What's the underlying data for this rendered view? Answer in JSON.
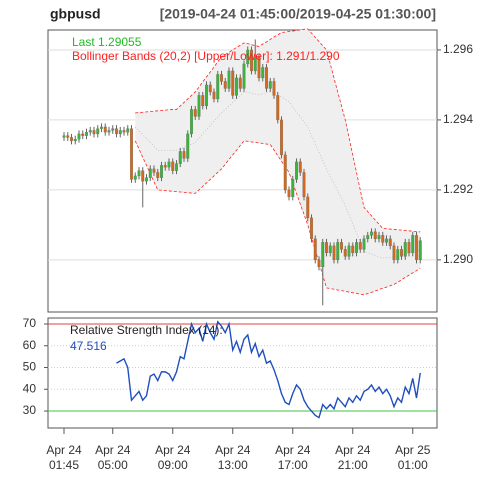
{
  "chart_data": [
    {
      "type": "candlestick",
      "title": "gbpusd",
      "subtitle": "[2019-04-24 01:45:00/2019-04-25 01:30:00]",
      "last_label": "Last 1.29055",
      "last_color": "#22bb22",
      "bands_label": "Bollinger Bands (20,2) [Upper/Lower]: 1.291/1.290",
      "bands_color": "#ff2020",
      "up_color": "#3cb43c",
      "down_color": "#d2691e",
      "ylim": [
        1.28851,
        1.29657
      ],
      "yticks": [
        {
          "value": 1.29,
          "label": "1.290"
        },
        1.292,
        1.294,
        1.296
      ],
      "grid": true,
      "open": [
        1.2935,
        1.29355,
        1.2935,
        1.2934,
        1.29345,
        1.2936,
        1.29355,
        1.29365,
        1.2937,
        1.2936,
        1.29375,
        1.2938,
        1.29365,
        1.2937,
        1.29375,
        1.2936,
        1.2937,
        1.29365,
        1.29375,
        1.2923,
        1.2924,
        1.29255,
        1.29225,
        1.29235,
        1.2926,
        1.2925,
        1.29235,
        1.2927,
        1.29265,
        1.2928,
        1.29255,
        1.29275,
        1.2931,
        1.2929,
        1.2936,
        1.2943,
        1.2941,
        1.2947,
        1.2944,
        1.295,
        1.2948,
        1.2946,
        1.2953,
        1.2951,
        1.2949,
        1.2954,
        1.2947,
        1.2952,
        1.2949,
        1.2956,
        1.296,
        1.2954,
        1.2958,
        1.2952,
        1.2955,
        1.2949,
        1.2951,
        1.2947,
        1.294,
        1.293,
        1.292,
        1.2918,
        1.2923,
        1.2928,
        1.2925,
        1.2918,
        1.2912,
        1.2906,
        1.29,
        1.2898,
        1.2905,
        1.2902,
        1.2904,
        1.29,
        1.2905,
        1.2903,
        1.2901,
        1.2904,
        1.2902,
        1.2905,
        1.2903,
        1.2906,
        1.2907,
        1.2908,
        1.2906,
        1.2907,
        1.2905,
        1.2906,
        1.2904,
        1.29,
        1.2903,
        1.2901,
        1.2905,
        1.2902,
        1.2907,
        1.29
      ],
      "high": [
        1.29365,
        1.29365,
        1.2936,
        1.29355,
        1.2937,
        1.2937,
        1.29375,
        1.2938,
        1.2938,
        1.29385,
        1.2939,
        1.2939,
        1.2938,
        1.29385,
        1.29385,
        1.2938,
        1.2938,
        1.29385,
        1.29385,
        1.2925,
        1.29265,
        1.29265,
        1.29245,
        1.2927,
        1.2927,
        1.2926,
        1.2928,
        1.2928,
        1.2929,
        1.2929,
        1.29285,
        1.2932,
        1.2932,
        1.2937,
        1.2944,
        1.2944,
        1.2948,
        1.2948,
        1.2951,
        1.2951,
        1.2949,
        1.2954,
        1.2954,
        1.2952,
        1.2955,
        1.2955,
        1.2953,
        1.2953,
        1.2957,
        1.2961,
        1.2961,
        1.2963,
        1.2959,
        1.2956,
        1.2956,
        1.2952,
        1.2952,
        1.2948,
        1.2941,
        1.2931,
        1.2921,
        1.2924,
        1.2929,
        1.2929,
        1.2926,
        1.2919,
        1.2913,
        1.2907,
        1.2901,
        1.2906,
        1.2906,
        1.2905,
        1.2905,
        1.2906,
        1.2906,
        1.2904,
        1.2905,
        1.2905,
        1.2906,
        1.2906,
        1.2907,
        1.2908,
        1.2909,
        1.2909,
        1.2908,
        1.2908,
        1.2907,
        1.2907,
        1.2905,
        1.2904,
        1.2904,
        1.2906,
        1.2906,
        1.2908,
        1.2908,
        1.29065
      ],
      "low": [
        1.2934,
        1.2934,
        1.2933,
        1.2933,
        1.29335,
        1.29345,
        1.29345,
        1.29355,
        1.2935,
        1.2935,
        1.29365,
        1.29355,
        1.29355,
        1.2936,
        1.2935,
        1.2935,
        1.29355,
        1.29355,
        1.2922,
        1.2922,
        1.2923,
        1.2915,
        1.29215,
        1.29225,
        1.2924,
        1.29225,
        1.29225,
        1.29255,
        1.29255,
        1.29245,
        1.29245,
        1.29265,
        1.2928,
        1.2928,
        1.2935,
        1.294,
        1.294,
        1.2943,
        1.2943,
        1.2947,
        1.2945,
        1.2945,
        1.295,
        1.2948,
        1.2948,
        1.2946,
        1.2946,
        1.2948,
        1.2948,
        1.2955,
        1.2953,
        1.2953,
        1.2951,
        1.2951,
        1.2948,
        1.2948,
        1.2946,
        1.2939,
        1.2929,
        1.2919,
        1.2917,
        1.2917,
        1.2922,
        1.2924,
        1.2917,
        1.2911,
        1.2905,
        1.2899,
        1.2897,
        1.2887,
        1.2901,
        1.2901,
        1.2899,
        1.2899,
        1.2902,
        1.29,
        1.29,
        1.2901,
        1.2901,
        1.2902,
        1.2902,
        1.2905,
        1.2906,
        1.2905,
        1.2905,
        1.2904,
        1.2904,
        1.2903,
        1.2899,
        1.2899,
        1.29,
        1.29,
        1.2901,
        1.2901,
        1.2899,
        1.2899
      ],
      "close": [
        1.29355,
        1.2935,
        1.2934,
        1.29345,
        1.2936,
        1.29355,
        1.29365,
        1.2937,
        1.2936,
        1.29375,
        1.2938,
        1.29365,
        1.2937,
        1.29375,
        1.2936,
        1.2937,
        1.29365,
        1.29375,
        1.2923,
        1.2924,
        1.29255,
        1.29225,
        1.29235,
        1.2926,
        1.2925,
        1.29235,
        1.2927,
        1.29265,
        1.2928,
        1.29255,
        1.29275,
        1.2931,
        1.2929,
        1.2936,
        1.2943,
        1.2941,
        1.2947,
        1.2944,
        1.295,
        1.2948,
        1.2946,
        1.2953,
        1.2951,
        1.2949,
        1.2954,
        1.2947,
        1.2952,
        1.2949,
        1.2956,
        1.296,
        1.2954,
        1.2958,
        1.2952,
        1.2955,
        1.2949,
        1.2951,
        1.2947,
        1.294,
        1.293,
        1.292,
        1.2918,
        1.2923,
        1.2928,
        1.2925,
        1.2918,
        1.2912,
        1.2906,
        1.29,
        1.2898,
        1.2905,
        1.2902,
        1.2904,
        1.29,
        1.2905,
        1.2903,
        1.2901,
        1.2904,
        1.2902,
        1.2905,
        1.2903,
        1.2906,
        1.2907,
        1.2908,
        1.2906,
        1.2907,
        1.2905,
        1.2906,
        1.2904,
        1.29,
        1.2903,
        1.2901,
        1.2905,
        1.2902,
        1.2907,
        1.29,
        1.29055
      ],
      "bands": {
        "upper": [
          null,
          null,
          null,
          null,
          null,
          null,
          null,
          null,
          null,
          null,
          null,
          null,
          null,
          null,
          null,
          null,
          null,
          null,
          null,
          1.2942,
          1.29421,
          1.29422,
          1.29423,
          1.29424,
          1.29425,
          1.29426,
          1.29427,
          1.29428,
          1.29429,
          1.2943,
          1.2943,
          1.2944,
          1.2945,
          1.2946,
          1.2947,
          1.2948,
          1.29494,
          1.29509,
          1.29523,
          1.29537,
          1.29551,
          1.29566,
          1.2958,
          1.29587,
          1.29593,
          1.296,
          1.29607,
          1.29613,
          1.2962,
          1.29618,
          1.29615,
          1.29612,
          1.2961,
          1.29617,
          1.29623,
          1.2963,
          1.29637,
          1.29643,
          1.2965,
          1.29651,
          1.29653,
          1.29654,
          1.29656,
          1.29657,
          1.29659,
          1.2966,
          1.29648,
          1.29636,
          1.29624,
          1.29612,
          1.296,
          1.2956,
          1.2952,
          1.2948,
          1.2944,
          1.294,
          1.2935,
          1.293,
          1.2925,
          1.292,
          1.2915,
          1.29138,
          1.29126,
          1.29114,
          1.29102,
          1.2909,
          1.29089,
          1.29088,
          1.29087,
          1.29086,
          1.29085,
          1.29084,
          1.29083,
          1.29082,
          1.29081,
          1.2908
        ],
        "lower": [
          null,
          null,
          null,
          null,
          null,
          null,
          null,
          null,
          null,
          null,
          null,
          null,
          null,
          null,
          null,
          null,
          null,
          null,
          null,
          1.2934,
          1.29317,
          1.29293,
          1.2927,
          1.29247,
          1.29223,
          1.292,
          1.29199,
          1.29198,
          1.29197,
          1.29196,
          1.29195,
          1.29194,
          1.29193,
          1.29192,
          1.29191,
          1.2919,
          1.292,
          1.2921,
          1.2922,
          1.2923,
          1.2924,
          1.2925,
          1.2926,
          1.29273,
          1.29287,
          1.293,
          1.29313,
          1.29327,
          1.2934,
          1.29339,
          1.29337,
          1.29336,
          1.29334,
          1.29333,
          1.29331,
          1.2933,
          1.29314,
          1.29298,
          1.29282,
          1.29266,
          1.2925,
          1.2922,
          1.2919,
          1.2916,
          1.2913,
          1.291,
          1.29064,
          1.29028,
          1.28992,
          1.28956,
          1.2892,
          1.28918,
          1.28916,
          1.28914,
          1.28912,
          1.2891,
          1.28908,
          1.28906,
          1.28904,
          1.28902,
          1.289,
          1.28904,
          1.28907,
          1.28911,
          1.28915,
          1.28919,
          1.28922,
          1.28926,
          1.2893,
          1.28936,
          1.28943,
          1.2895,
          1.28956,
          1.28963,
          1.28969,
          1.28976
        ],
        "middle": [
          null,
          null,
          null,
          null,
          null,
          null,
          null,
          null,
          null,
          null,
          null,
          null,
          null,
          null,
          null,
          null,
          null,
          null,
          null,
          1.2938,
          1.29369,
          1.29358,
          1.29347,
          1.29336,
          1.29324,
          1.29313,
          1.29313,
          1.29313,
          1.29313,
          1.29313,
          1.29313,
          1.29317,
          1.29322,
          1.29326,
          1.29331,
          1.29335,
          1.29347,
          1.2936,
          1.29372,
          1.29384,
          1.29396,
          1.29408,
          1.2942,
          1.2943,
          1.2944,
          1.2945,
          1.2946,
          1.2947,
          1.2948,
          1.29479,
          1.29476,
          1.29474,
          1.29472,
          1.29475,
          1.29477,
          1.2948,
          1.29476,
          1.29471,
          1.29466,
          1.29459,
          1.29452,
          1.29437,
          1.29423,
          1.29409,
          1.29395,
          1.2938,
          1.29356,
          1.29332,
          1.29308,
          1.29284,
          1.2926,
          1.29239,
          1.29218,
          1.29197,
          1.29176,
          1.29155,
          1.29129,
          1.29103,
          1.29077,
          1.29051,
          1.29025,
          1.29021,
          1.29017,
          1.29013,
          1.29009,
          1.29005,
          1.29006,
          1.29007,
          1.29009,
          1.29011,
          1.29014,
          1.29017,
          1.2902,
          1.29023,
          1.29025,
          1.29028
        ],
        "fill": "#efefef",
        "line_color": "#ff2020",
        "middle_color": "#bbbbbb"
      }
    },
    {
      "type": "line",
      "title": "Relative Strength Index (14):",
      "color": "#1f4fbf",
      "ylim": [
        22.2,
        72.76
      ],
      "yticks": [
        30,
        40,
        50,
        60,
        70
      ],
      "grid": true,
      "hlines": [
        {
          "value": 70,
          "color": "#e04040"
        },
        {
          "value": 30,
          "color": "#40c040"
        }
      ],
      "values": [
        null,
        null,
        null,
        null,
        null,
        null,
        null,
        null,
        null,
        null,
        null,
        null,
        null,
        null,
        52,
        53,
        54,
        50,
        35,
        37,
        39,
        35,
        37,
        46,
        47,
        44,
        48,
        48,
        47,
        44,
        48,
        55,
        54,
        62,
        70,
        66,
        68,
        62,
        70,
        66,
        63,
        71,
        69,
        66,
        70,
        58,
        62,
        57,
        63,
        65,
        57,
        61,
        55,
        58,
        52,
        53,
        49,
        44,
        38,
        34,
        33,
        38,
        42,
        40,
        35,
        32,
        30,
        28,
        27,
        33,
        31,
        33,
        31,
        36,
        34,
        32,
        36,
        34,
        37,
        35,
        39,
        40,
        42,
        39,
        41,
        38,
        40,
        37,
        32,
        36,
        34,
        41,
        38,
        45,
        36,
        47.516
      ],
      "xticks": [
        {
          "value": 0,
          "label": [
            "Apr 24",
            "01:45"
          ]
        },
        {
          "value": 13,
          "label": [
            "Apr 24",
            "05:00"
          ]
        },
        {
          "value": 29,
          "label": [
            "Apr 24",
            "09:00"
          ]
        },
        {
          "value": 45,
          "label": [
            "Apr 24",
            "13:00"
          ]
        },
        {
          "value": 61,
          "label": [
            "Apr 24",
            "17:00"
          ]
        },
        {
          "value": 77,
          "label": [
            "Apr 24",
            "21:00"
          ]
        },
        {
          "value": 93,
          "label": [
            "Apr 25",
            "01:00"
          ]
        }
      ]
    }
  ]
}
